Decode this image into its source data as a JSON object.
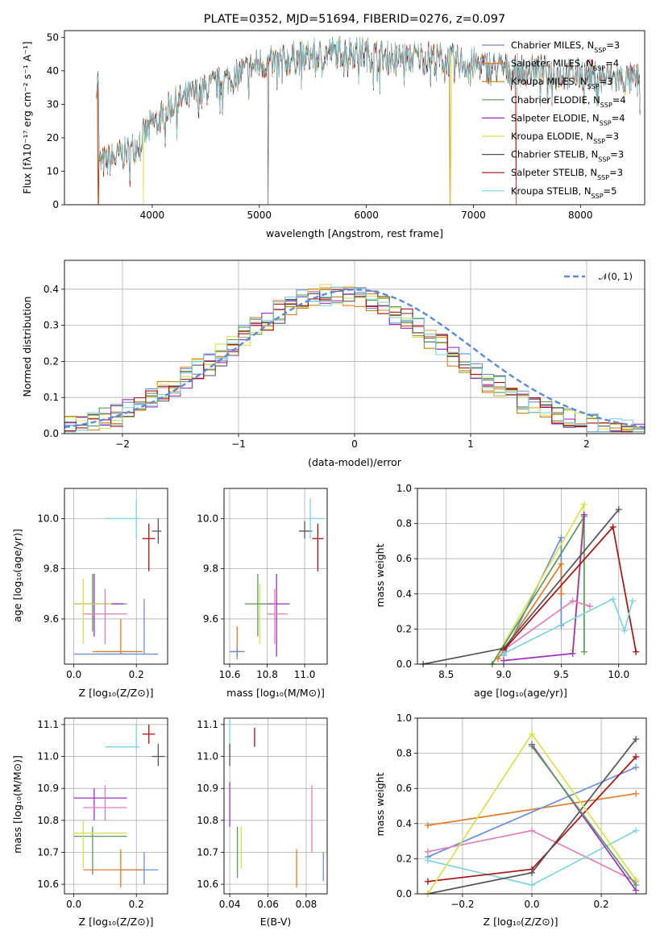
{
  "figure": {
    "title": "PLATE=0352, MJD=51694, FIBERID=0276, z=0.097"
  },
  "colors": {
    "Chabrier MILES": "#6a8fd8",
    "Salpeter MILES": "#e07b28",
    "Kroupa MILES": "#b8860b",
    "Chabrier ELODIE": "#5a9a5a",
    "Salpeter ELODIE": "#9b30c0",
    "Kroupa ELODIE": "#d8e050",
    "Chabrier STELIB": "#555555",
    "Salpeter STELIB": "#aa1111",
    "Kroupa STELIB": "#7fd4dc",
    "pink": "#e080b8",
    "normal": "#5b8ad6"
  },
  "chart_data": [
    {
      "id": "spectrum",
      "type": "line",
      "title": "PLATE=0352, MJD=51694, FIBERID=0276, z=0.097",
      "xlabel": "wavelength [Angstrom, rest frame]",
      "ylabel": "Flux [f_λ 10^-17 erg cm^-2 s^-1 A^-1]",
      "xlim": [
        3180,
        8600
      ],
      "ylim": [
        0,
        52
      ],
      "xticks": [
        "4000",
        "5000",
        "6000",
        "7000",
        "8000"
      ],
      "yticks": [
        "0",
        "10",
        "20",
        "30",
        "40",
        "50"
      ],
      "legend": [
        {
          "name": "Chabrier MILES",
          "nssp": "3"
        },
        {
          "name": "Salpeter MILES",
          "nssp": "4"
        },
        {
          "name": "Kroupa MILES",
          "nssp": "3"
        },
        {
          "name": "Chabrier ELODIE",
          "nssp": "4"
        },
        {
          "name": "Salpeter ELODIE",
          "nssp": "4"
        },
        {
          "name": "Kroupa ELODIE",
          "nssp": "3"
        },
        {
          "name": "Chabrier STELIB",
          "nssp": "3"
        },
        {
          "name": "Salpeter STELIB",
          "nssp": "3"
        },
        {
          "name": "Kroupa STELIB",
          "nssp": "5"
        }
      ],
      "continuum": [
        [
          3500,
          12
        ],
        [
          3800,
          16
        ],
        [
          4000,
          24
        ],
        [
          4200,
          30
        ],
        [
          4400,
          33
        ],
        [
          4600,
          36
        ],
        [
          4800,
          39
        ],
        [
          5000,
          42
        ],
        [
          5200,
          43
        ],
        [
          5400,
          44
        ],
        [
          5600,
          45
        ],
        [
          5800,
          46
        ],
        [
          6000,
          45
        ],
        [
          6200,
          44
        ],
        [
          6400,
          44
        ],
        [
          6600,
          44
        ],
        [
          6800,
          43
        ],
        [
          7000,
          42
        ],
        [
          7200,
          41
        ],
        [
          7400,
          40
        ],
        [
          7600,
          40
        ],
        [
          7800,
          39
        ],
        [
          8000,
          39
        ],
        [
          8200,
          38
        ],
        [
          8600,
          37
        ]
      ]
    },
    {
      "id": "residuals",
      "type": "line",
      "xlabel": "(data-model)/error",
      "ylabel": "Normed distribution",
      "xlim": [
        -2.5,
        2.5
      ],
      "ylim": [
        0,
        0.48
      ],
      "xticks": [
        "−2",
        "−1",
        "0",
        "1",
        "2"
      ],
      "yticks": [
        "0.0",
        "0.1",
        "0.2",
        "0.3",
        "0.4"
      ],
      "legend": "𝒩(0, 1)"
    },
    {
      "id": "age_vs_Z",
      "type": "scatter",
      "xlabel": "Z [log10(Z/Z⊙)]",
      "ylabel": "age [log10(age/yr)]",
      "xlim": [
        -0.03,
        0.3
      ],
      "ylim": [
        9.42,
        10.12
      ],
      "xticks": [
        "0.0",
        "0.2"
      ],
      "yticks": [
        "9.6",
        "9.8",
        "10.0"
      ],
      "points": [
        {
          "series": "Chabrier MILES",
          "x": 0.225,
          "y": 9.46,
          "xerr": [
            0.0,
            0.27
          ],
          "yerr": [
            9.46,
            9.68
          ]
        },
        {
          "series": "Salpeter MILES",
          "x": 0.15,
          "y": 9.47,
          "xerr": [
            0.06,
            0.22
          ],
          "yerr": [
            9.46,
            9.6
          ]
        },
        {
          "series": "Chabrier ELODIE",
          "x": 0.06,
          "y": 9.66,
          "xerr": [
            0.0,
            0.17
          ],
          "yerr": [
            9.55,
            9.78
          ]
        },
        {
          "series": "Salpeter ELODIE",
          "x": 0.065,
          "y": 9.66,
          "xerr": [
            0.0,
            0.16
          ],
          "yerr": [
            9.53,
            9.78
          ]
        },
        {
          "series": "Kroupa ELODIE",
          "x": 0.03,
          "y": 9.66,
          "xerr": [
            0.0,
            0.12
          ],
          "yerr": [
            9.5,
            9.76
          ]
        },
        {
          "series": "Chabrier STELIB",
          "x": 0.27,
          "y": 9.95,
          "xerr": [
            0.25,
            0.28
          ],
          "yerr": [
            9.9,
            10.0
          ]
        },
        {
          "series": "Salpeter STELIB",
          "x": 0.24,
          "y": 9.92,
          "xerr": [
            0.22,
            0.26
          ],
          "yerr": [
            9.79,
            9.98
          ]
        },
        {
          "series": "Kroupa STELIB",
          "x": 0.2,
          "y": 10.0,
          "xerr": [
            0.1,
            0.21
          ],
          "yerr": [
            9.92,
            10.08
          ]
        },
        {
          "series": "pink",
          "x": 0.1,
          "y": 9.62,
          "xerr": [
            0.03,
            0.17
          ],
          "yerr": [
            9.5,
            9.72
          ]
        }
      ]
    },
    {
      "id": "age_vs_mass",
      "type": "scatter",
      "xlabel": "mass [log10(M/M⊙)]",
      "ylabel": "",
      "xlim": [
        10.57,
        11.12
      ],
      "ylim": [
        9.42,
        10.12
      ],
      "xticks": [
        "10.6",
        "10.8",
        "11.0"
      ],
      "yticks": [
        "9.6",
        "9.8",
        "10.0"
      ],
      "points": [
        {
          "series": "Salpeter MILES",
          "x": 10.64,
          "y": 9.47,
          "xerr": [
            10.61,
            10.67
          ],
          "yerr": [
            9.44,
            9.57
          ]
        },
        {
          "series": "Chabrier MILES",
          "x": 10.64,
          "y": 9.47,
          "xerr": [
            10.6,
            10.68
          ],
          "yerr": [
            9.45,
            9.49
          ]
        },
        {
          "series": "Kroupa ELODIE",
          "x": 10.76,
          "y": 9.66,
          "xerr": [
            10.71,
            10.8
          ],
          "yerr": [
            9.5,
            9.74
          ]
        },
        {
          "series": "Chabrier ELODIE",
          "x": 10.75,
          "y": 9.66,
          "xerr": [
            10.68,
            10.8
          ],
          "yerr": [
            9.53,
            9.78
          ]
        },
        {
          "series": "Salpeter ELODIE",
          "x": 10.85,
          "y": 9.66,
          "xerr": [
            10.8,
            10.92
          ],
          "yerr": [
            9.45,
            9.78
          ]
        },
        {
          "series": "pink",
          "x": 10.84,
          "y": 9.62,
          "xerr": [
            10.8,
            10.91
          ],
          "yerr": [
            9.5,
            9.72
          ]
        },
        {
          "series": "Chabrier STELIB",
          "x": 11.0,
          "y": 9.95,
          "xerr": [
            10.97,
            11.04
          ],
          "yerr": [
            9.92,
            9.99
          ]
        },
        {
          "series": "Salpeter STELIB",
          "x": 11.07,
          "y": 9.92,
          "xerr": [
            11.04,
            11.1
          ],
          "yerr": [
            9.79,
            9.98
          ]
        },
        {
          "series": "Kroupa STELIB",
          "x": 11.03,
          "y": 10.0,
          "xerr": [
            11.02,
            11.1
          ],
          "yerr": [
            9.92,
            10.08
          ]
        }
      ]
    },
    {
      "id": "weight_vs_age",
      "type": "line",
      "xlabel": "age [log10(age/yr)]",
      "ylabel": "mass weight",
      "xlim": [
        8.25,
        10.24
      ],
      "ylim": [
        0,
        1.0
      ],
      "xticks": [
        "8.5",
        "9.0",
        "9.5",
        "10.0"
      ],
      "yticks": [
        "0.0",
        "0.2",
        "0.4",
        "0.6",
        "0.8",
        "1.0"
      ],
      "series": [
        {
          "name": "Chabrier MILES",
          "points": [
            [
              9.0,
              0.05
            ],
            [
              9.5,
              0.72
            ],
            [
              9.5,
              0.22
            ]
          ]
        },
        {
          "name": "Salpeter MILES",
          "points": [
            [
              8.95,
              0.03
            ],
            [
              9.5,
              0.57
            ],
            [
              9.5,
              0.4
            ]
          ]
        },
        {
          "name": "Kroupa ELODIE",
          "points": [
            [
              8.9,
              0.0
            ],
            [
              9.7,
              0.91
            ],
            [
              9.6,
              0.08
            ]
          ]
        },
        {
          "name": "Chabrier ELODIE",
          "points": [
            [
              8.9,
              0.0
            ],
            [
              9.7,
              0.84
            ],
            [
              9.7,
              0.07
            ]
          ]
        },
        {
          "name": "Salpeter ELODIE",
          "points": [
            [
              9.0,
              0.02
            ],
            [
              9.6,
              0.06
            ],
            [
              9.7,
              0.85
            ]
          ]
        },
        {
          "name": "pink",
          "points": [
            [
              9.0,
              0.08
            ],
            [
              9.6,
              0.36
            ],
            [
              9.75,
              0.33
            ]
          ]
        },
        {
          "name": "Chabrier STELIB",
          "points": [
            [
              8.3,
              0.0
            ],
            [
              9.0,
              0.09
            ],
            [
              10.0,
              0.88
            ]
          ]
        },
        {
          "name": "Salpeter STELIB",
          "points": [
            [
              9.0,
              0.08
            ],
            [
              9.95,
              0.78
            ],
            [
              10.15,
              0.07
            ]
          ]
        },
        {
          "name": "Kroupa STELIB",
          "points": [
            [
              9.0,
              0.06
            ],
            [
              9.95,
              0.37
            ],
            [
              10.05,
              0.19
            ],
            [
              10.12,
              0.36
            ]
          ]
        }
      ]
    },
    {
      "id": "mass_vs_Z",
      "type": "scatter",
      "xlabel": "Z [log10(Z/Z⊙)]",
      "ylabel": "mass [log10(M/M⊙)]",
      "xlim": [
        -0.03,
        0.3
      ],
      "ylim": [
        10.57,
        11.12
      ],
      "xticks": [
        "0.0",
        "0.2"
      ],
      "yticks": [
        "10.6",
        "10.7",
        "10.8",
        "10.9",
        "11.0",
        "11.1"
      ],
      "points": [
        {
          "series": "Chabrier MILES",
          "x": 0.225,
          "y": 10.645,
          "xerr": [
            0.15,
            0.27
          ],
          "yerr": [
            10.6,
            10.7
          ]
        },
        {
          "series": "Salpeter MILES",
          "x": 0.15,
          "y": 10.645,
          "xerr": [
            0.03,
            0.22
          ],
          "yerr": [
            10.59,
            10.71
          ]
        },
        {
          "series": "Chabrier ELODIE",
          "x": 0.06,
          "y": 10.75,
          "xerr": [
            0.0,
            0.17
          ],
          "yerr": [
            10.63,
            10.78
          ]
        },
        {
          "series": "Salpeter ELODIE",
          "x": 0.065,
          "y": 10.87,
          "xerr": [
            0.0,
            0.17
          ],
          "yerr": [
            10.8,
            10.9
          ]
        },
        {
          "series": "Kroupa ELODIE",
          "x": 0.03,
          "y": 10.76,
          "xerr": [
            0.0,
            0.17
          ],
          "yerr": [
            10.65,
            10.8
          ]
        },
        {
          "series": "pink",
          "x": 0.1,
          "y": 10.84,
          "xerr": [
            0.03,
            0.17
          ],
          "yerr": [
            10.8,
            10.91
          ]
        },
        {
          "series": "Chabrier STELIB",
          "x": 0.27,
          "y": 11.0,
          "xerr": [
            0.25,
            0.29
          ],
          "yerr": [
            10.97,
            11.04
          ]
        },
        {
          "series": "Salpeter STELIB",
          "x": 0.24,
          "y": 11.07,
          "xerr": [
            0.22,
            0.26
          ],
          "yerr": [
            11.04,
            11.1
          ]
        },
        {
          "series": "Kroupa STELIB",
          "x": 0.2,
          "y": 11.03,
          "xerr": [
            0.1,
            0.21
          ],
          "yerr": [
            11.02,
            11.1
          ]
        }
      ]
    },
    {
      "id": "mass_vs_ebv",
      "type": "scatter",
      "xlabel": "E(B-V)",
      "ylabel": "",
      "xlim": [
        0.037,
        0.091
      ],
      "ylim": [
        10.57,
        11.12
      ],
      "xticks": [
        "0.04",
        "0.06",
        "0.08"
      ],
      "yticks": [
        "10.6",
        "10.7",
        "10.8",
        "10.9",
        "11.0",
        "11.1"
      ],
      "points": [
        {
          "series": "Kroupa STELIB",
          "x": 0.04,
          "yerr": [
            11.0,
            11.12
          ]
        },
        {
          "series": "Chabrier STELIB",
          "x": 0.04,
          "yerr": [
            10.97,
            11.04
          ]
        },
        {
          "series": "Salpeter ELODIE",
          "x": 0.04,
          "yerr": [
            10.78,
            10.92
          ]
        },
        {
          "series": "Chabrier ELODIE",
          "x": 0.044,
          "yerr": [
            10.62,
            10.78
          ]
        },
        {
          "series": "Kroupa ELODIE",
          "x": 0.046,
          "yerr": [
            10.65,
            10.78
          ]
        },
        {
          "series": "Salpeter STELIB",
          "x": 0.053,
          "yerr": [
            11.03,
            11.09
          ]
        },
        {
          "series": "Salpeter MILES",
          "x": 0.075,
          "yerr": [
            10.59,
            10.71
          ]
        },
        {
          "series": "pink",
          "x": 0.083,
          "yerr": [
            10.7,
            10.91
          ]
        },
        {
          "series": "Chabrier MILES",
          "x": 0.089,
          "yerr": [
            10.61,
            10.7
          ]
        }
      ]
    },
    {
      "id": "weight_vs_Z",
      "type": "line",
      "xlabel": "Z [log10(Z/Z⊙)]",
      "ylabel": "mass weight",
      "xlim": [
        -0.33,
        0.33
      ],
      "ylim": [
        0,
        1.0
      ],
      "xticks": [
        "−0.2",
        "0.0",
        "0.2"
      ],
      "yticks": [
        "0.0",
        "0.2",
        "0.4",
        "0.6",
        "0.8",
        "1.0"
      ],
      "series": [
        {
          "name": "Salpeter MILES",
          "points": [
            [
              -0.3,
              0.39
            ],
            [
              0.3,
              0.57
            ]
          ]
        },
        {
          "name": "Chabrier MILES",
          "points": [
            [
              -0.3,
              0.21
            ],
            [
              0.3,
              0.72
            ]
          ]
        },
        {
          "name": "pink",
          "points": [
            [
              -0.3,
              0.24
            ],
            [
              0.0,
              0.36
            ],
            [
              0.3,
              0.07
            ]
          ]
        },
        {
          "name": "Kroupa STELIB",
          "points": [
            [
              -0.3,
              0.19
            ],
            [
              0.0,
              0.05
            ],
            [
              0.3,
              0.36
            ]
          ]
        },
        {
          "name": "Salpeter STELIB",
          "points": [
            [
              -0.3,
              0.07
            ],
            [
              0.0,
              0.14
            ],
            [
              0.3,
              0.78
            ]
          ]
        },
        {
          "name": "Chabrier STELIB",
          "points": [
            [
              -0.3,
              0.0
            ],
            [
              0.0,
              0.12
            ],
            [
              0.3,
              0.88
            ]
          ]
        },
        {
          "name": "Kroupa ELODIE",
          "points": [
            [
              -0.3,
              0.0
            ],
            [
              0.0,
              0.91
            ],
            [
              0.3,
              0.08
            ]
          ]
        },
        {
          "name": "Salpeter ELODIE",
          "points": [
            [
              0.0,
              0.85
            ],
            [
              0.3,
              0.02
            ]
          ]
        },
        {
          "name": "Chabrier ELODIE",
          "points": [
            [
              0.0,
              0.84
            ],
            [
              0.3,
              0.05
            ]
          ]
        }
      ]
    }
  ],
  "axis_labels": {
    "spectrum_x": "wavelength [Angstrom, rest frame]",
    "spectrum_y": "Flux [fλ10⁻¹⁷ erg cm⁻² s⁻¹ A⁻¹]",
    "resid_x": "(data-model)/error",
    "resid_y": "Normed distribution",
    "resid_legend": "𝒩(0, 1)",
    "age_y": "age  [log₁₀(age/yr)]",
    "Z_x": "Z [log₁₀(Z/Z⊙)]",
    "mass_x": "mass [log₁₀(M/M⊙)]",
    "mw_y": "mass weight",
    "age_x": "age  [log₁₀(age/yr)]",
    "mass_y": "mass [log₁₀(M/M⊙)]",
    "ebv_x": "E(B-V)"
  }
}
